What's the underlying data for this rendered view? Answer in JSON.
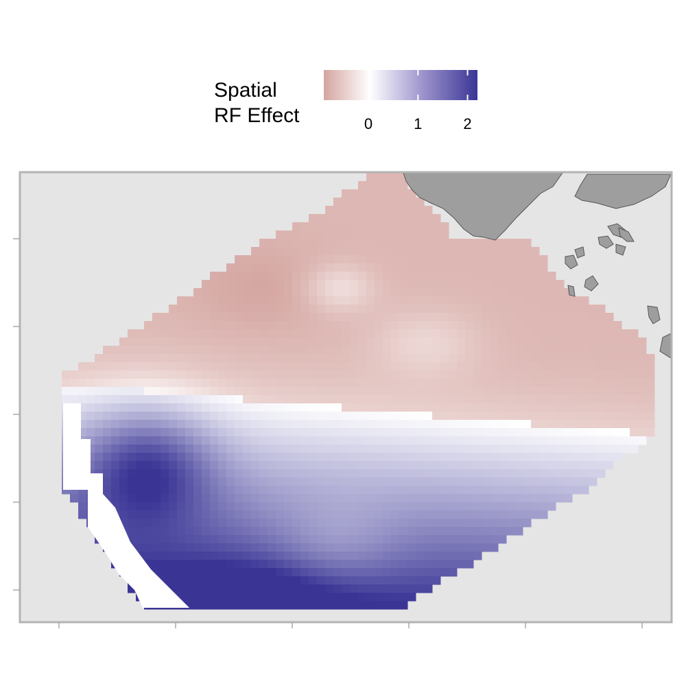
{
  "chart_data": {
    "type": "heatmap",
    "title": "",
    "xlabel": "",
    "ylabel": "",
    "legend": {
      "title_lines": [
        "Spatial",
        "RF Effect"
      ],
      "ticks": [
        0,
        1,
        2
      ],
      "tick_labels": [
        "0",
        "1",
        "2"
      ],
      "range": [
        -0.9,
        2.2
      ],
      "placement": "top"
    },
    "color_scale": {
      "low": "#d4a5a0",
      "mid": "#ffffff",
      "high": "#3a3595",
      "midpoint": 0
    },
    "grid": false,
    "axis_tick_labels_visible": false,
    "panel_background": "#e5e5e5",
    "land_color": "#9e9e9e",
    "surface_description": "Spatial random field effect over a tilted survey region: negative values (pink) in the north, zero band (white) crossing the middle, positive values (purple) in the south with a maximum near the south-west."
  }
}
